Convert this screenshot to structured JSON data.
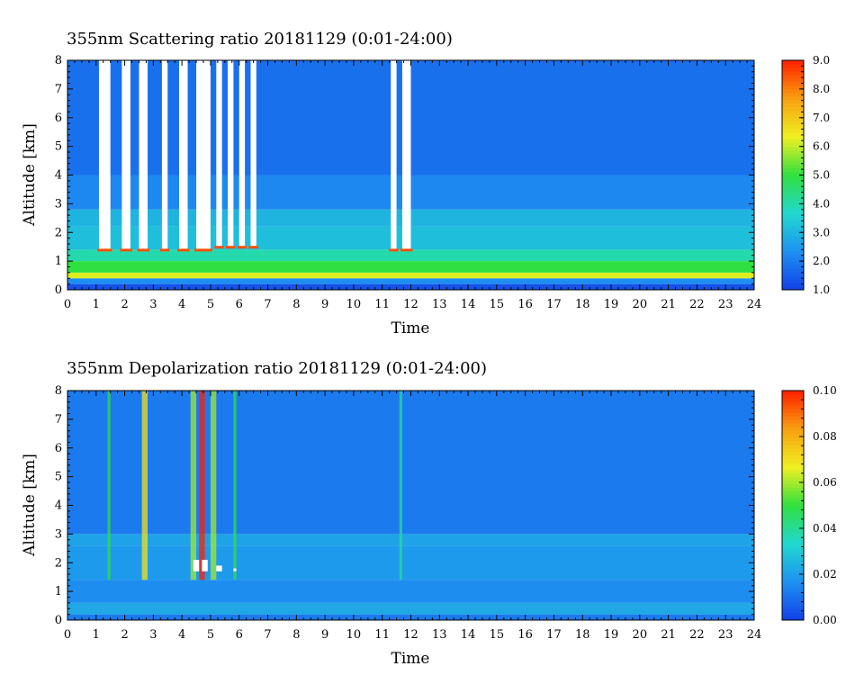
{
  "chart_data": [
    {
      "type": "heatmap",
      "title": "355nm Scattering ratio  20181129 (0:01-24:00)",
      "xlabel": "Time",
      "ylabel": "Altitude [km]",
      "xlim": [
        0,
        24
      ],
      "ylim": [
        0,
        8
      ],
      "x_ticks": [
        "0",
        "1",
        "2",
        "3",
        "4",
        "5",
        "6",
        "7",
        "8",
        "9",
        "10",
        "11",
        "12",
        "13",
        "14",
        "15",
        "16",
        "17",
        "18",
        "19",
        "20",
        "21",
        "22",
        "23",
        "24"
      ],
      "y_ticks": [
        "0",
        "1",
        "2",
        "3",
        "4",
        "5",
        "6",
        "7",
        "8"
      ],
      "colorbar": {
        "min": 1.0,
        "max": 9.0,
        "tick_values": [
          1,
          2,
          3,
          4,
          5,
          6,
          7,
          8,
          9
        ],
        "tick_labels": [
          "1.0",
          "2.0",
          "3.0",
          "4.0",
          "5.0",
          "6.0",
          "7.0",
          "8.0",
          "9.0"
        ]
      },
      "colormap": [
        "#1240e8",
        "#1e90f0",
        "#20d8d0",
        "#30e040",
        "#f0f020",
        "#f8a010",
        "#ff2000"
      ],
      "cloud_color": "#ffffff",
      "layers": [
        {
          "alt_range": [
            0.0,
            0.2
          ],
          "value": 1.3
        },
        {
          "alt_range": [
            0.2,
            0.4
          ],
          "value": 2.3
        },
        {
          "alt_range": [
            0.4,
            0.6
          ],
          "value": 6.2
        },
        {
          "alt_range": [
            0.6,
            1.0
          ],
          "value": 5.0
        },
        {
          "alt_range": [
            1.0,
            1.4
          ],
          "value": 4.0
        },
        {
          "alt_range": [
            1.4,
            2.2
          ],
          "value": 3.2
        },
        {
          "alt_range": [
            2.2,
            2.8
          ],
          "value": 3.0
        },
        {
          "alt_range": [
            2.8,
            4.0
          ],
          "value": 2.2
        },
        {
          "alt_range": [
            4.0,
            8.0
          ],
          "value": 1.8
        }
      ],
      "cloud_columns": [
        {
          "x": [
            1.1,
            1.5
          ],
          "alt_range": [
            1.4,
            8.0
          ]
        },
        {
          "x": [
            1.9,
            2.2
          ],
          "alt_range": [
            1.4,
            8.0
          ]
        },
        {
          "x": [
            2.5,
            2.8
          ],
          "alt_range": [
            1.4,
            8.0
          ]
        },
        {
          "x": [
            3.3,
            3.5
          ],
          "alt_range": [
            1.4,
            8.0
          ]
        },
        {
          "x": [
            3.9,
            4.2
          ],
          "alt_range": [
            1.4,
            8.0
          ]
        },
        {
          "x": [
            4.5,
            5.0
          ],
          "alt_range": [
            1.4,
            8.0
          ]
        },
        {
          "x": [
            5.2,
            5.4
          ],
          "alt_range": [
            1.5,
            8.0
          ]
        },
        {
          "x": [
            5.6,
            5.8
          ],
          "alt_range": [
            1.5,
            8.0
          ]
        },
        {
          "x": [
            6.0,
            6.2
          ],
          "alt_range": [
            1.5,
            8.0
          ]
        },
        {
          "x": [
            6.4,
            6.6
          ],
          "alt_range": [
            1.5,
            8.0
          ]
        },
        {
          "x": [
            11.3,
            11.5
          ],
          "alt_range": [
            1.4,
            8.0
          ]
        },
        {
          "x": [
            11.7,
            12.0
          ],
          "alt_range": [
            1.4,
            8.0
          ]
        }
      ]
    },
    {
      "type": "heatmap",
      "title": "355nm Depolarization ratio  20181129 (0:01-24:00)",
      "xlabel": "Time",
      "ylabel": "Altitude [km]",
      "xlim": [
        0,
        24
      ],
      "ylim": [
        0,
        8
      ],
      "x_ticks": [
        "0",
        "1",
        "2",
        "3",
        "4",
        "5",
        "6",
        "7",
        "8",
        "9",
        "10",
        "11",
        "12",
        "13",
        "14",
        "15",
        "16",
        "17",
        "18",
        "19",
        "20",
        "21",
        "22",
        "23",
        "24"
      ],
      "y_ticks": [
        "0",
        "1",
        "2",
        "3",
        "4",
        "5",
        "6",
        "7",
        "8"
      ],
      "colorbar": {
        "min": 0.0,
        "max": 0.1,
        "tick_values": [
          0.0,
          0.02,
          0.04,
          0.06,
          0.08,
          0.1
        ],
        "tick_labels": [
          "0.00",
          "0.02",
          "0.04",
          "0.06",
          "0.08",
          "0.10"
        ]
      },
      "colormap": [
        "#1240e8",
        "#1e90f0",
        "#20d8d0",
        "#30e040",
        "#f0f020",
        "#f8a010",
        "#ff2000"
      ],
      "cloud_color": "#ffffff",
      "layers": [
        {
          "alt_range": [
            0.0,
            0.2
          ],
          "value": 0.012
        },
        {
          "alt_range": [
            0.2,
            0.6
          ],
          "value": 0.022
        },
        {
          "alt_range": [
            0.6,
            1.4
          ],
          "value": 0.016
        },
        {
          "alt_range": [
            1.4,
            2.6
          ],
          "value": 0.019
        },
        {
          "alt_range": [
            2.6,
            3.0
          ],
          "value": 0.021
        },
        {
          "alt_range": [
            3.0,
            8.0
          ],
          "value": 0.012
        }
      ],
      "high_depol_columns": [
        {
          "x": [
            1.4,
            1.5
          ],
          "value": 0.05
        },
        {
          "x": [
            2.6,
            2.8
          ],
          "value": 0.07
        },
        {
          "x": [
            4.3,
            4.5
          ],
          "value": 0.06
        },
        {
          "x": [
            4.6,
            4.8
          ],
          "value": 0.1
        },
        {
          "x": [
            5.0,
            5.2
          ],
          "value": 0.06
        },
        {
          "x": [
            5.8,
            5.9
          ],
          "value": 0.05
        },
        {
          "x": [
            11.6,
            11.7
          ],
          "value": 0.04
        }
      ],
      "white_patches": [
        {
          "x": [
            4.4,
            4.6
          ],
          "alt_range": [
            1.7,
            2.1
          ]
        },
        {
          "x": [
            4.7,
            4.9
          ],
          "alt_range": [
            1.7,
            2.1
          ]
        },
        {
          "x": [
            5.2,
            5.4
          ],
          "alt_range": [
            1.7,
            1.9
          ]
        },
        {
          "x": [
            5.8,
            5.9
          ],
          "alt_range": [
            1.7,
            1.8
          ]
        }
      ]
    }
  ]
}
